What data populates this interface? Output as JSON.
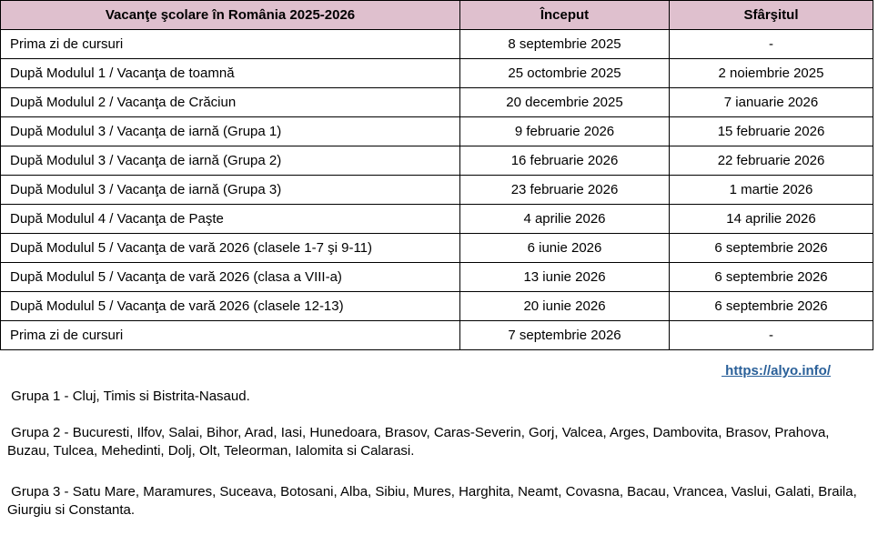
{
  "table": {
    "headers": {
      "title": "Vacanţe şcolare în România 2025-2026",
      "start": "Început",
      "end": "Sfârşitul"
    },
    "rows": [
      {
        "name": "Prima zi de cursuri",
        "start": "8 septembrie 2025",
        "end": "-"
      },
      {
        "name": "După Modulul 1 / Vacanţa de toamnă",
        "start": "25 octombrie 2025",
        "end": "2 noiembrie 2025"
      },
      {
        "name": "După Modulul 2 / Vacanţa de Crăciun",
        "start": "20 decembrie 2025",
        "end": "7 ianuarie 2026"
      },
      {
        "name": "După Modulul 3 / Vacanţa de iarnă (Grupa 1)",
        "start": "9 februarie 2026",
        "end": "15 februarie 2026"
      },
      {
        "name": "După Modulul 3 / Vacanţa de iarnă (Grupa 2)",
        "start": "16 februarie 2026",
        "end": "22 februarie 2026"
      },
      {
        "name": "După Modulul 3 / Vacanţa de iarnă (Grupa 3)",
        "start": "23 februarie 2026",
        "end": "1 martie 2026"
      },
      {
        "name": "După Modulul 4 / Vacanţa de Paşte",
        "start": "4 aprilie 2026",
        "end": "14 aprilie 2026"
      },
      {
        "name": "După Modulul 5 / Vacanţa de vară 2026 (clasele 1-7 şi 9-11)",
        "start": "6 iunie 2026",
        "end": "6 septembrie 2026"
      },
      {
        "name": "După Modulul 5 / Vacanţa de vară 2026 (clasa a VIII-a)",
        "start": "13 iunie 2026",
        "end": "6 septembrie 2026"
      },
      {
        "name": "După Modulul 5 / Vacanţa de vară 2026 (clasele 12-13)",
        "start": "20 iunie 2026",
        "end": "6 septembrie 2026"
      },
      {
        "name": "Prima zi de cursuri",
        "start": "7 septembrie 2026",
        "end": "-"
      }
    ]
  },
  "link": {
    "label": " https://alyo.info/"
  },
  "notes": {
    "grupa1": " Grupa 1 - Cluj, Timis si Bistrita-Nasaud.",
    "grupa2": " Grupa 2 - Bucuresti, Ilfov, Salai, Bihor, Arad, Iasi, Hunedoara, Brasov, Caras-Severin, Gorj, Valcea, Arges, Dambovita, Brasov, Prahova, Buzau, Tulcea, Mehedinti, Dolj, Olt, Teleorman, Ialomita si Calarasi.",
    "grupa3": " Grupa 3 - Satu Mare, Maramures, Suceava, Botosani, Alba, Sibiu, Mures, Harghita, Neamt, Covasna, Bacau, Vrancea, Vaslui, Galati, Braila, Giurgiu si Constanta."
  },
  "colors": {
    "header_bg": "#dfc0ce",
    "border": "#000000",
    "link": "#2a6099",
    "text": "#000000"
  }
}
